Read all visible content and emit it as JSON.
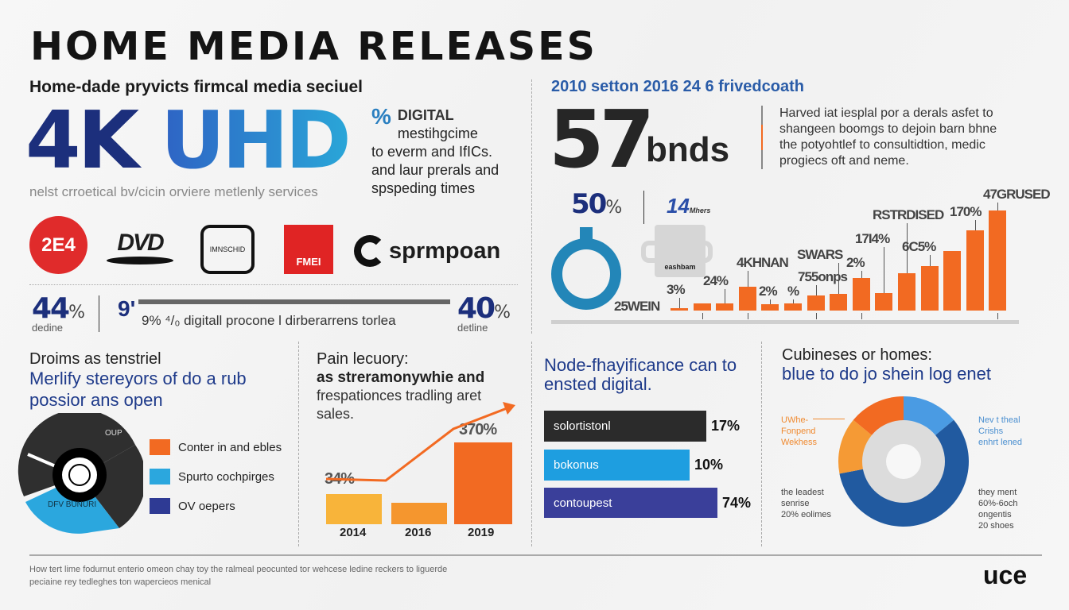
{
  "title": "HOME MEDIA RELEASES",
  "left_top": {
    "subtitle": "Home-dade pryvicts firmcal media seciuel",
    "hero_a": "4K",
    "hero_b": "UHD",
    "caption": "nelst crroetical bv/cicin orviere metlenly services",
    "digital_icon": "%",
    "digital_title": "DIGITAL",
    "digital_lines": [
      "mestihgcime",
      "to everm and IfICs.",
      "and laur prerals and",
      "spspeding times"
    ]
  },
  "logos": [
    {
      "name": "logo-red-circle",
      "text": "2E4",
      "color": "#e02b2b"
    },
    {
      "name": "logo-dvd",
      "text": "DVD"
    },
    {
      "name": "logo-badge",
      "text": "IMNSCHID"
    },
    {
      "name": "logo-red-square",
      "text": "FMEI",
      "color": "#e02424"
    },
    {
      "name": "logo-sprmpoan",
      "text": "sprmpoan"
    }
  ],
  "stats_row": {
    "left_value": "44",
    "left_unit": "%",
    "left_label": "dedine",
    "mid_icon": "9'",
    "mid_text": "9% ⁴/₀ digitall procone l dirberarrens torlea",
    "right_value": "40",
    "right_unit": "%",
    "right_label": "detline"
  },
  "right_top": {
    "heading": "2010 setton 2016 24 6 frivedcoath",
    "big_number": "57",
    "big_unit": "bnds",
    "paragraph": [
      "Harved iat iesplal por a derals asfet to",
      "shangeen boomgs to dejoin barn bhne",
      "the potyohtlef to consultidtion,  medic",
      "progiecs oft and neme."
    ],
    "stat_value": "50",
    "stat_unit": "%",
    "small_stat": "14",
    "small_stat_caption": "Mhers",
    "mug_label": "eashbam",
    "colors": {
      "accent_orange": "#f26a22",
      "ring_blue": "#2386b8",
      "navy": "#1c2f7c"
    }
  },
  "chart_data": [
    {
      "type": "bar",
      "title": "",
      "values": [
        3,
        9,
        9,
        30,
        8,
        9,
        19,
        21,
        41,
        22,
        47,
        56,
        75,
        101,
        126
      ],
      "annotations": [
        {
          "text": "25WEIN",
          "bar": 0
        },
        {
          "text": "3%",
          "bar": 0
        },
        {
          "text": "24%",
          "bar": 2
        },
        {
          "text": "4KHNAN",
          "bar": 3
        },
        {
          "text": "2%",
          "bar": 4
        },
        {
          "text": "%",
          "bar": 5
        },
        {
          "text": "755onps",
          "bar": 6
        },
        {
          "text": "SWARS",
          "bar": 7
        },
        {
          "text": "2%",
          "bar": 8
        },
        {
          "text": "17I4%",
          "bar": 9
        },
        {
          "text": "RSTRDISED",
          "bar": 10
        },
        {
          "text": "6C5%",
          "bar": 11
        },
        {
          "text": "170%",
          "bar": 13
        },
        {
          "text": "47GRUSED",
          "bar": 14
        }
      ]
    },
    {
      "type": "pie",
      "title": "Droims as tenstriel",
      "subtitle": "Merlify stereyors of do a rub possior ans open",
      "slices": [
        {
          "label": "Conter in and ebles",
          "value": 70,
          "color": "#2f2f2f"
        },
        {
          "label": "Spurto cochpirges",
          "value": 22,
          "color": "#2ba7de"
        },
        {
          "label": "OV oepers",
          "value": 8,
          "color": "#2e3a94"
        }
      ],
      "inner_labels": [
        "OUP",
        "DFV BUNURI"
      ],
      "legend": [
        {
          "label": "Conter in and ebles",
          "color": "#f26a22"
        },
        {
          "label": "Spurto cochpirges",
          "color": "#2ba7de"
        },
        {
          "label": "OV oepers",
          "color": "#2e3a94"
        }
      ]
    },
    {
      "type": "bar",
      "title": "Pain lecuory:",
      "subtitle": "as streramonywhie and",
      "body": [
        "frespationces tradling aret",
        "sales."
      ],
      "categories": [
        "2014",
        "2016",
        "2019"
      ],
      "values": [
        34,
        24,
        370
      ],
      "labels": [
        "34%",
        "",
        "370%"
      ],
      "colors": [
        "#f8b43a",
        "#f5962e",
        "#f26a22"
      ],
      "trend_line": true
    },
    {
      "type": "bar",
      "orientation": "horizontal",
      "title": "Node-fhayificance can to ensted digital.",
      "categories": [
        "solortistonl",
        "bokonus",
        "contoupest"
      ],
      "values": [
        17,
        10,
        74
      ],
      "labels": [
        "17%",
        "10%",
        "74%"
      ],
      "colors": [
        "#2b2b2b",
        "#1e9ee0",
        "#3a3f9a"
      ]
    },
    {
      "type": "pie",
      "title": "Cubineses or homes:",
      "subtitle": "blue to do jo shein log enet",
      "slices": [
        {
          "label": "Nev t theal Crishs enhrt lened",
          "value": 14,
          "color": "#4a9be3"
        },
        {
          "label": "they ment 60%-6och ongentis 20 shoes",
          "value": 58,
          "color": "#215aa0"
        },
        {
          "label": "the leadest senrise 20% eolimes",
          "value": 14,
          "color": "#f59a35"
        },
        {
          "label": "UWhe- Fonpend Wekhess",
          "value": 14,
          "color": "#f26a22"
        }
      ],
      "callouts": [
        [
          "UWhe-",
          "Fonpend",
          "Wekhess"
        ],
        [
          "Nev t theal",
          "Crishs",
          "enhrt lened"
        ],
        [
          "the leadest",
          "senrise",
          "20% eolimes"
        ],
        [
          "they ment",
          "60%-6och",
          "ongentis",
          "20 shoes"
        ]
      ]
    }
  ],
  "footer": {
    "lines": [
      "How tert lime fodurnut enterio omeon chay toy the ralmeal peocunted tor wehcese ledine reckers to liguerde",
      "peciaine rey tedleghes ton wapercieos menical"
    ],
    "brand": "uce"
  }
}
